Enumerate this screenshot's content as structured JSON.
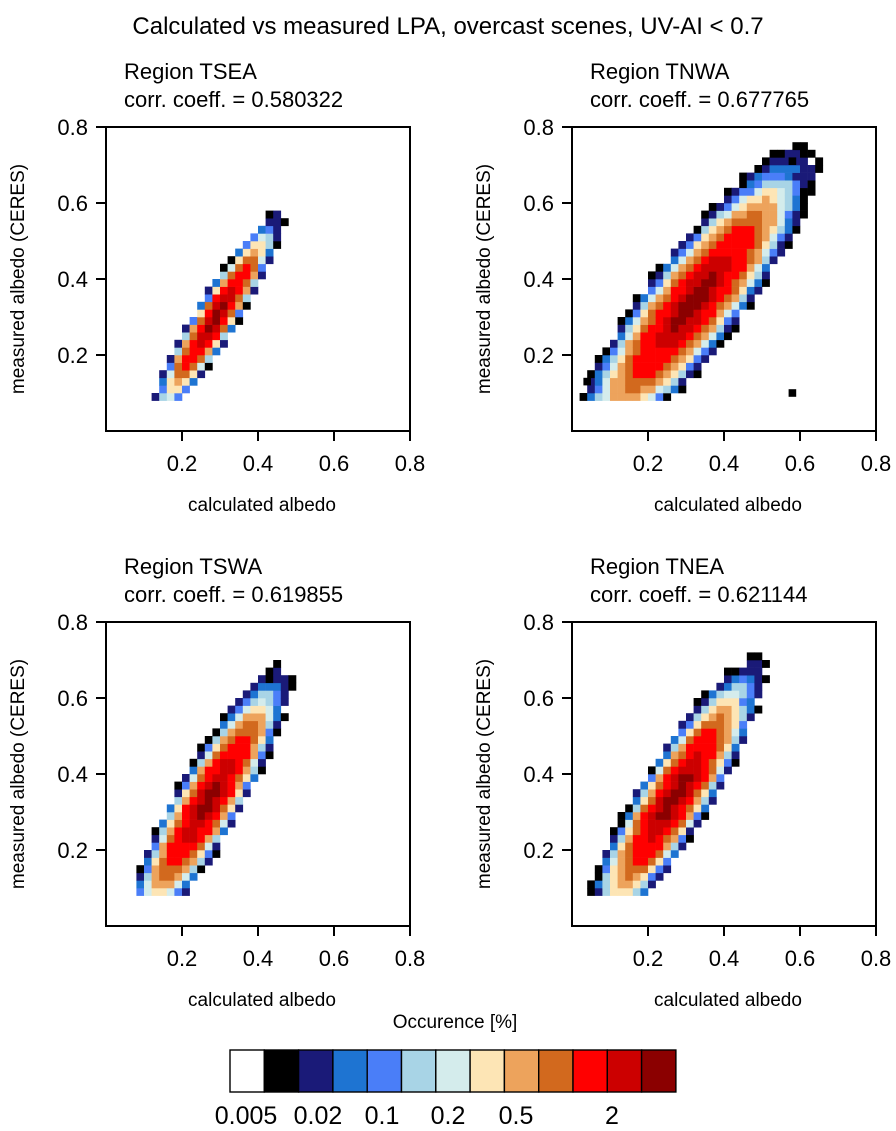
{
  "figure": {
    "title": "Calculated vs measured LPA, overcast scenes, UV-AI < 0.7"
  },
  "colorbar": {
    "title": "Occurence [%]",
    "colors": [
      "#ffffff",
      "#000000",
      "#1a1a78",
      "#1e74d2",
      "#4a7ef8",
      "#a8d4e6",
      "#d4ecec",
      "#fde5b5",
      "#eda35c",
      "#d2691e",
      "#ff0000",
      "#cc0000",
      "#8b0000"
    ],
    "tick_labels": [
      "0.005",
      "0.02",
      "0.1",
      "0.2",
      "0.5",
      "2"
    ]
  },
  "chart_data": [
    {
      "type": "heatmap",
      "title": "Region TSEA",
      "subtitle": "corr. coeff. = 0.580322",
      "xlabel": "calculated albedo",
      "ylabel": "measured albedo (CERES)",
      "xlim": [
        0,
        0.8
      ],
      "ylim": [
        0,
        0.8
      ],
      "xticks": [
        "0.2",
        "0.4",
        "0.6",
        "0.8"
      ],
      "yticks": [
        "0.2",
        "0.4",
        "0.6",
        "0.8"
      ],
      "cell_size": 0.02,
      "x_range": [
        0.18,
        0.4
      ],
      "levels": [
        "00000000000",
        "00000000000",
        "01357665310",
        "01357876310",
        "01357876310",
        "01357876310",
        "01357876310",
        "01357876310",
        "01357765310",
        "01357665310",
        "01357765310",
        "01357765310",
        "01357665310",
        "01357665310",
        "01357655310",
        "01357555310",
        "01357665310",
        "01357555310",
        "00000000000",
        "00000000000"
      ],
      "y_range": [
        0.08,
        0.55
      ],
      "peak": {
        "x": 0.29,
        "y": 0.3
      }
    },
    {
      "type": "heatmap",
      "title": "Region TNWA",
      "subtitle": "corr. coeff. = 0.677765",
      "xlabel": "calculated albedo",
      "ylabel": "measured albedo (CERES)",
      "xlim": [
        0,
        0.8
      ],
      "ylim": [
        0,
        0.8
      ],
      "xticks": [
        "0.2",
        "0.4",
        "0.6",
        "0.8"
      ],
      "yticks": [
        "0.2",
        "0.4",
        "0.6",
        "0.8"
      ],
      "peak": {
        "x": 0.32,
        "y": 0.3
      },
      "outliers": [
        [
          0.03,
          0.12
        ],
        [
          0.57,
          0.09
        ],
        [
          0.57,
          0.7
        ]
      ]
    },
    {
      "type": "heatmap",
      "title": "Region TSWA",
      "subtitle": "corr. coeff. = 0.619855",
      "xlabel": "calculated albedo",
      "ylabel": "measured albedo (CERES)",
      "xlim": [
        0,
        0.8
      ],
      "ylim": [
        0,
        0.8
      ],
      "xticks": [
        "0.2",
        "0.4",
        "0.6",
        "0.8"
      ],
      "yticks": [
        "0.2",
        "0.4",
        "0.6",
        "0.8"
      ],
      "peak": {
        "x": 0.27,
        "y": 0.26
      }
    },
    {
      "type": "heatmap",
      "title": "Region TNEA",
      "subtitle": "corr. coeff. = 0.621144",
      "xlabel": "calculated albedo",
      "ylabel": "measured albedo (CERES)",
      "xlim": [
        0,
        0.8
      ],
      "ylim": [
        0,
        0.8
      ],
      "xticks": [
        "0.2",
        "0.4",
        "0.6",
        "0.8"
      ],
      "yticks": [
        "0.2",
        "0.4",
        "0.6",
        "0.8"
      ],
      "peak": {
        "x": 0.23,
        "y": 0.22
      }
    }
  ]
}
